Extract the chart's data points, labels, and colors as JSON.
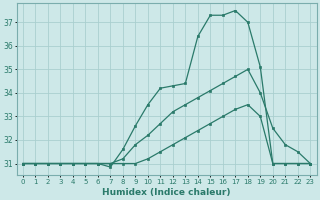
{
  "title": "",
  "xlabel": "Humidex (Indice chaleur)",
  "xlim": [
    -0.5,
    23.5
  ],
  "ylim": [
    30.5,
    37.8
  ],
  "yticks": [
    31,
    32,
    33,
    34,
    35,
    36,
    37
  ],
  "xticks": [
    0,
    1,
    2,
    3,
    4,
    5,
    6,
    7,
    8,
    9,
    10,
    11,
    12,
    13,
    14,
    15,
    16,
    17,
    18,
    19,
    20,
    21,
    22,
    23
  ],
  "background_color": "#cde8e8",
  "grid_color": "#aacfcf",
  "line_color": "#2a7a6a",
  "line1_x": [
    0,
    1,
    2,
    3,
    4,
    5,
    6,
    7,
    8,
    9,
    10,
    11,
    12,
    13,
    14,
    15,
    16,
    17,
    18,
    19,
    20,
    21,
    22,
    23
  ],
  "line1_y": [
    31,
    31,
    31,
    31,
    31,
    31,
    31,
    30.85,
    31.6,
    32.6,
    33.5,
    34.2,
    34.3,
    34.4,
    36.4,
    37.3,
    37.3,
    37.5,
    37.0,
    35.1,
    31,
    31,
    31,
    31
  ],
  "line2_x": [
    0,
    1,
    2,
    3,
    4,
    5,
    6,
    7,
    8,
    9,
    10,
    11,
    12,
    13,
    14,
    15,
    16,
    17,
    18,
    19,
    20,
    21,
    22,
    23
  ],
  "line2_y": [
    31,
    31,
    31,
    31,
    31,
    31,
    31,
    31,
    31.2,
    31.8,
    32.2,
    32.7,
    33.2,
    33.5,
    33.8,
    34.1,
    34.4,
    34.7,
    35.0,
    34.0,
    32.5,
    31.8,
    31.5,
    31
  ],
  "line3_x": [
    0,
    1,
    2,
    3,
    4,
    5,
    6,
    7,
    8,
    9,
    10,
    11,
    12,
    13,
    14,
    15,
    16,
    17,
    18,
    19,
    20,
    21,
    22,
    23
  ],
  "line3_y": [
    31,
    31,
    31,
    31,
    31,
    31,
    31,
    31,
    31,
    31,
    31.2,
    31.5,
    31.8,
    32.1,
    32.4,
    32.7,
    33.0,
    33.3,
    33.5,
    33.0,
    31,
    31,
    31,
    31
  ]
}
